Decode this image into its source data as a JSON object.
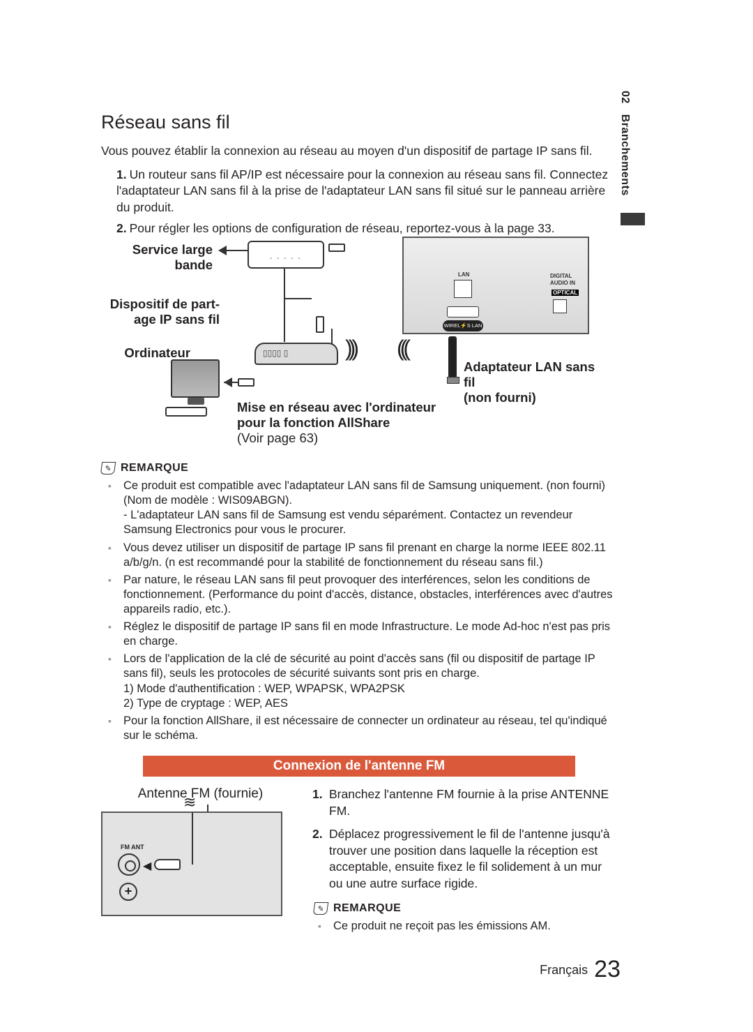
{
  "sidebar": {
    "chapter": "02",
    "section": "Branchements"
  },
  "wifi": {
    "title": "Réseau sans fil",
    "intro": "Vous pouvez établir la connexion au réseau au moyen d'un dispositif de partage IP sans fil.",
    "steps": [
      "Un routeur sans fil AP/IP est nécessaire pour la connexion au réseau sans fil. Connectez l'adaptateur LAN sans fil à la prise de l'adaptateur LAN sans fil situé sur le panneau arrière du produit.",
      "Pour régler les options de configuration de réseau, reportez-vous à la page 33."
    ]
  },
  "diagram": {
    "service_label_1": "Service large",
    "service_label_2": "bande",
    "router_label_1": "Dispositif de part-",
    "router_label_2": "age IP sans fil",
    "pc_label": "Ordinateur",
    "adapter_label_1": "Adaptateur LAN sans fil",
    "adapter_label_2": "(non fourni)",
    "allshare_1": "Mise en réseau avec l'ordinateur",
    "allshare_2": "pour la fonction AllShare",
    "allshare_3": "(Voir page 63)",
    "panel": {
      "lan": "LAN",
      "digaudio1": "DIGITAL",
      "digaudio2": "AUDIO IN",
      "optical": "OPTICAL",
      "wlan": "WIREL⚡S LAN"
    }
  },
  "remarque_label": "REMARQUE",
  "wifi_notes": [
    "Ce produit est compatible avec l'adaptateur LAN sans fil de Samsung uniquement. (non fourni) (Nom de modèle : WIS09ABGN).\n- L'adaptateur LAN sans fil de Samsung est vendu séparément. Contactez un revendeur Samsung Electronics pour vous le procurer.",
    "Vous devez utiliser un dispositif de partage IP sans fil prenant en charge la norme IEEE 802.11 a/b/g/n. (n est recommandé pour la stabilité de fonctionnement du réseau sans fil.)",
    "Par nature, le réseau LAN sans fil peut provoquer des interférences, selon les conditions de fonctionnement. (Performance du point d'accès, distance, obstacles, interférences avec d'autres appareils radio, etc.).",
    "Réglez le dispositif de partage IP sans fil en mode Infrastructure. Le mode Ad-hoc n'est pas pris en charge.",
    "Lors de l'application de la clé de sécurité au point d'accès sans (fil ou dispositif de partage IP sans fil), seuls les protocoles de sécurité suivants sont pris en charge.\n1)  Mode d'authentification : WEP, WPAPSK, WPA2PSK\n2)  Type de cryptage : WEP, AES",
    "Pour la fonction AllShare, il est nécessaire de connecter un ordinateur au réseau, tel qu'indiqué sur le schéma."
  ],
  "fm": {
    "bar_title": "Connexion de l'antenne FM",
    "left_title": "Antenne FM (fournie)",
    "fmant": "FM ANT",
    "steps": [
      "Branchez l'antenne FM fournie à la prise ANTENNE FM.",
      "Déplacez progressivement le fil de l'antenne jusqu'à trouver une position dans laquelle la réception est acceptable, ensuite fixez le fil solidement à un mur ou une autre surface rigide."
    ],
    "note": "Ce produit ne reçoit pas les émissions AM."
  },
  "footer": {
    "lang": "Français",
    "page": "23"
  },
  "colors": {
    "orange": "#d9593a",
    "bullet": "#999999"
  }
}
